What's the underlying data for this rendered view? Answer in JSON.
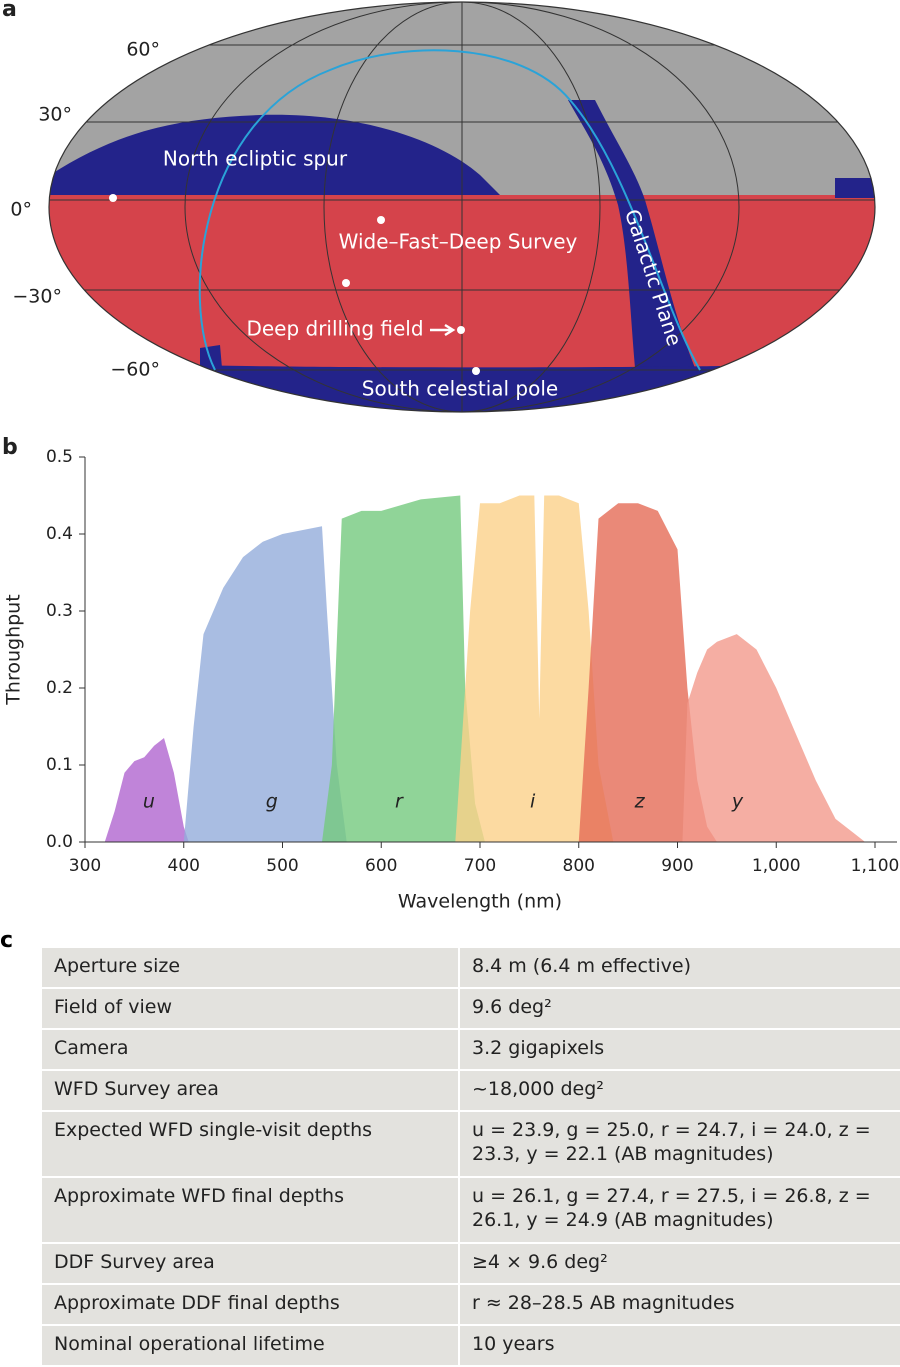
{
  "panel_labels": [
    "a",
    "b",
    "c"
  ],
  "map": {
    "lat_labels": [
      "60°",
      "30°",
      "0°",
      "−30°",
      "−60°"
    ],
    "regions": [
      "North ecliptic spur",
      "Wide–Fast–Deep Survey",
      "Galactic Plane",
      "Deep drilling field",
      "South celestial pole"
    ]
  },
  "chart_data": {
    "type": "area",
    "xlabel": "Wavelength (nm)",
    "ylabel": "Throughput",
    "xlim": [
      300,
      1100
    ],
    "ylim": [
      0,
      0.5
    ],
    "xticks": [
      300,
      400,
      500,
      600,
      700,
      800,
      900,
      {
        "value": 1000,
        "label": "1,000"
      },
      {
        "value": 1100,
        "label": "1,100"
      }
    ],
    "yticks": [
      {
        "value": 0,
        "label": "0.0"
      },
      0.1,
      0.2,
      0.3,
      0.4,
      0.5
    ],
    "series": [
      {
        "name": "u",
        "color": "#b065cf",
        "x": [
          320,
          330,
          340,
          350,
          360,
          370,
          380,
          390,
          400,
          405
        ],
        "values": [
          0,
          0.04,
          0.09,
          0.105,
          0.11,
          0.125,
          0.135,
          0.09,
          0.02,
          0
        ]
      },
      {
        "name": "g",
        "color": "#93acdb",
        "x": [
          400,
          410,
          420,
          440,
          460,
          480,
          500,
          520,
          540,
          545,
          555,
          565
        ],
        "values": [
          0,
          0.15,
          0.27,
          0.33,
          0.37,
          0.39,
          0.4,
          0.405,
          0.41,
          0.3,
          0.1,
          0
        ]
      },
      {
        "name": "r",
        "color": "#74c97e",
        "x": [
          540,
          550,
          560,
          580,
          600,
          640,
          680,
          685,
          695,
          705
        ],
        "values": [
          0,
          0.1,
          0.42,
          0.43,
          0.43,
          0.445,
          0.45,
          0.2,
          0.05,
          0
        ]
      },
      {
        "name": "i",
        "color": "#fbd189",
        "x": [
          675,
          690,
          700,
          720,
          740,
          755,
          760,
          765,
          780,
          800,
          810,
          820,
          835
        ],
        "values": [
          0,
          0.3,
          0.44,
          0.44,
          0.45,
          0.45,
          0.16,
          0.45,
          0.45,
          0.44,
          0.3,
          0.1,
          0
        ]
      },
      {
        "name": "z",
        "color": "#e56b56",
        "x": [
          800,
          810,
          820,
          840,
          860,
          880,
          900,
          910,
          920,
          930,
          940
        ],
        "values": [
          0,
          0.2,
          0.42,
          0.44,
          0.44,
          0.43,
          0.38,
          0.2,
          0.08,
          0.02,
          0
        ]
      },
      {
        "name": "y",
        "color": "#f29a8c",
        "x": [
          905,
          910,
          920,
          930,
          940,
          960,
          980,
          1000,
          1020,
          1040,
          1060,
          1080,
          1090
        ],
        "values": [
          0,
          0.18,
          0.22,
          0.25,
          0.26,
          0.27,
          0.25,
          0.2,
          0.14,
          0.08,
          0.03,
          0.01,
          0
        ]
      }
    ]
  },
  "table": {
    "rows": [
      [
        "Aperture size",
        "8.4 m (6.4 m effective)"
      ],
      [
        "Field of view",
        "9.6 deg²"
      ],
      [
        "Camera",
        "3.2 gigapixels"
      ],
      [
        "WFD Survey area",
        "~18,000 deg²"
      ],
      [
        "Expected WFD single-visit depths",
        "u = 23.9, g = 25.0, r = 24.7, i = 24.0, z = 23.3, y = 22.1 (AB magnitudes)"
      ],
      [
        "Approximate WFD final depths",
        "u = 26.1, g = 27.4, r = 27.5, i = 26.8, z = 26.1, y = 24.9 (AB magnitudes)"
      ],
      [
        "DDF Survey area",
        "≥4 × 9.6 deg²"
      ],
      [
        "Approximate DDF final depths",
        "r ≈ 28–28.5 AB magnitudes"
      ],
      [
        "Nominal operational lifetime",
        "10 years"
      ]
    ]
  }
}
